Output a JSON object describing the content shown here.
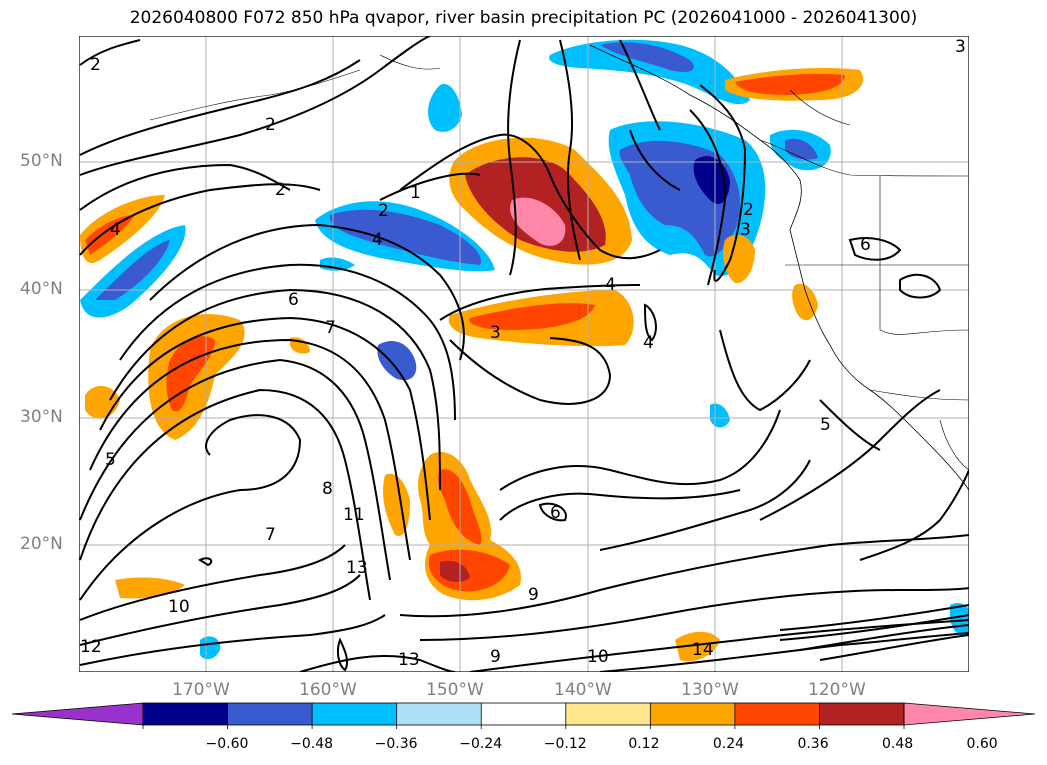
{
  "title": "2026040800 F072 850 hPa qvapor, river basin precipitation PC (2026041000 - 2026041300)",
  "lat_labels": [
    "50°N",
    "40°N",
    "30°N",
    "20°N"
  ],
  "lon_labels": [
    "170°W",
    "160°W",
    "150°W",
    "140°W",
    "130°W",
    "120°W"
  ],
  "colorbar": {
    "ticks": [
      "−0.60",
      "−0.48",
      "−0.36",
      "−0.24",
      "−0.12",
      "0.12",
      "0.24",
      "0.36",
      "0.48",
      "0.60"
    ],
    "colors": [
      "#9932CC",
      "#00008B",
      "#3A5BCF",
      "#00BFFF",
      "#ADDFF7",
      "#FFFFFF",
      "#FFE68C",
      "#FFA500",
      "#FF4500",
      "#B22222",
      "#FF88AA"
    ]
  },
  "contour_labels": [
    "1",
    "2",
    "2",
    "2",
    "2",
    "2",
    "3",
    "3",
    "3",
    "4",
    "4",
    "4",
    "4",
    "5",
    "5",
    "6",
    "6",
    "6",
    "7",
    "7",
    "8",
    "9",
    "9",
    "10",
    "10",
    "11",
    "12",
    "13",
    "13",
    "14"
  ],
  "colors": {
    "contour": "#000000",
    "grid": "#b0b0b0",
    "axis_label": "#808080"
  }
}
